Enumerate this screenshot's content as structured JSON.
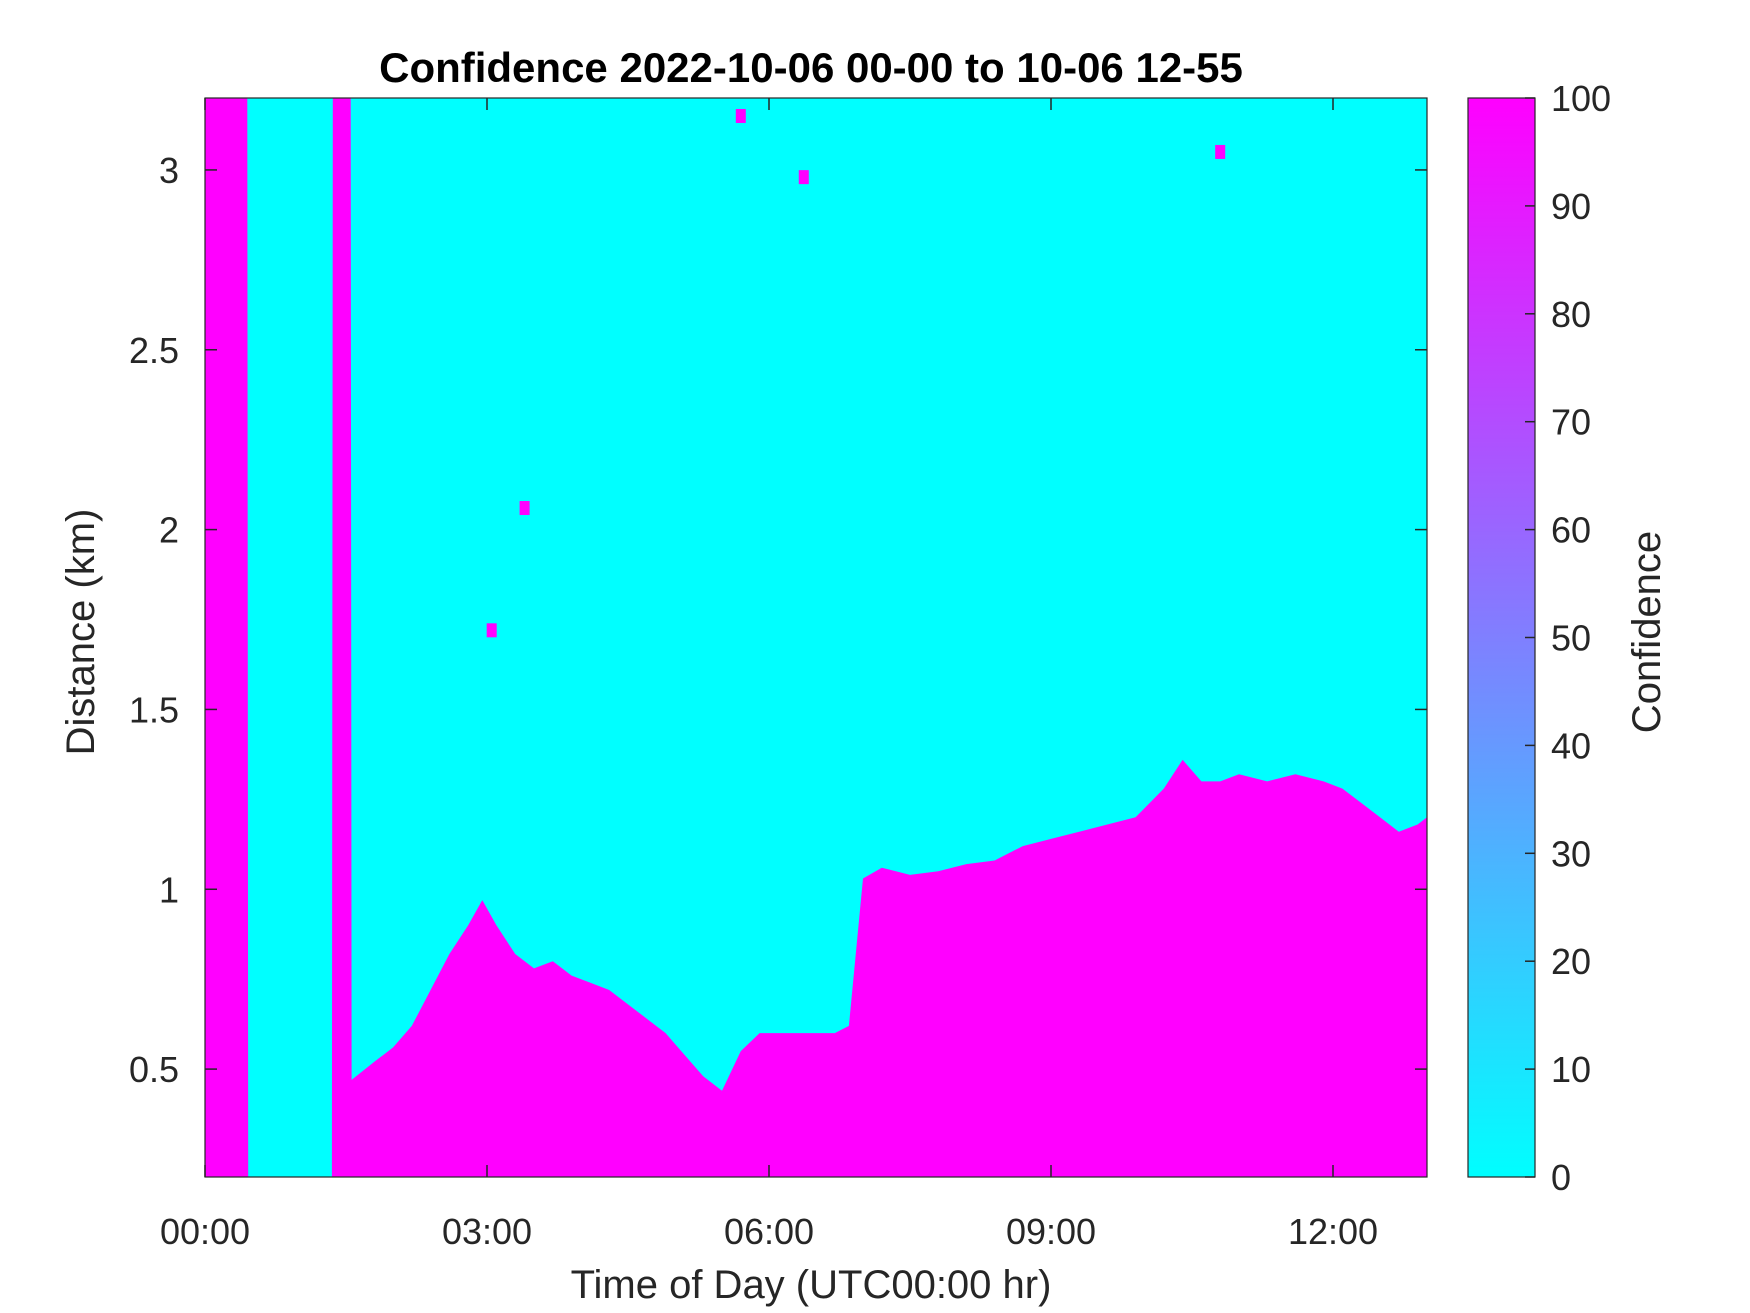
{
  "chart_data": {
    "type": "heatmap",
    "title": "Confidence 2022-10-06 00-00 to 10-06 12-55",
    "xlabel": "Time of Day (UTC00:00 hr)",
    "ylabel": "Distance (km)",
    "x_unit": "hours",
    "xlim": [
      0,
      13.0
    ],
    "ylim": [
      0.2,
      3.2
    ],
    "x_ticks": [
      0,
      3,
      6,
      9,
      12
    ],
    "x_tick_labels": [
      "00:00",
      "03:00",
      "06:00",
      "09:00",
      "12:00"
    ],
    "y_ticks": [
      0.5,
      1,
      1.5,
      2,
      2.5,
      3
    ],
    "y_tick_labels": [
      "0.5",
      "1",
      "1.5",
      "2",
      "2.5",
      "3"
    ],
    "colorbar": {
      "label": "Confidence",
      "range": [
        0,
        100
      ],
      "ticks": [
        0,
        10,
        20,
        30,
        40,
        50,
        60,
        70,
        80,
        90,
        100
      ],
      "tick_labels": [
        "0",
        "10",
        "20",
        "30",
        "40",
        "50",
        "60",
        "70",
        "80",
        "90",
        "100"
      ],
      "colormap": [
        "#00ffff",
        "#ff00ff"
      ]
    },
    "high_confidence_boundary": {
      "description": "Upper edge (km) of the contiguous high-confidence (100) region starting at the lowest range gate; above it confidence is 0",
      "time_h": [
        0.0,
        0.45,
        0.46,
        1.35,
        1.36,
        1.55,
        1.56,
        1.8,
        2.0,
        2.2,
        2.4,
        2.6,
        2.8,
        2.95,
        3.1,
        3.3,
        3.5,
        3.7,
        3.9,
        4.1,
        4.3,
        4.5,
        4.7,
        4.9,
        5.1,
        5.3,
        5.5,
        5.7,
        5.9,
        6.1,
        6.3,
        6.5,
        6.7,
        6.85,
        7.0,
        7.2,
        7.5,
        7.8,
        8.1,
        8.4,
        8.7,
        9.0,
        9.3,
        9.6,
        9.9,
        10.2,
        10.4,
        10.6,
        10.8,
        11.0,
        11.3,
        11.6,
        11.9,
        12.1,
        12.3,
        12.5,
        12.7,
        12.9,
        13.0
      ],
      "distance_km": [
        3.2,
        3.2,
        0.2,
        0.2,
        3.2,
        3.2,
        0.47,
        0.52,
        0.56,
        0.62,
        0.72,
        0.82,
        0.9,
        0.97,
        0.9,
        0.82,
        0.78,
        0.8,
        0.76,
        0.74,
        0.72,
        0.68,
        0.64,
        0.6,
        0.54,
        0.48,
        0.44,
        0.55,
        0.6,
        0.6,
        0.6,
        0.6,
        0.6,
        0.62,
        1.03,
        1.06,
        1.04,
        1.05,
        1.07,
        1.08,
        1.12,
        1.14,
        1.16,
        1.18,
        1.2,
        1.28,
        1.36,
        1.3,
        1.3,
        1.32,
        1.3,
        1.32,
        1.3,
        1.28,
        1.24,
        1.2,
        1.16,
        1.18,
        1.2
      ]
    },
    "annotations": [
      {
        "time_h": 3.4,
        "distance_km": 2.06,
        "value": 100
      },
      {
        "time_h": 3.05,
        "distance_km": 1.72,
        "value": 100
      },
      {
        "time_h": 5.7,
        "distance_km": 3.15,
        "value": 100
      },
      {
        "time_h": 6.37,
        "distance_km": 2.98,
        "value": 100
      },
      {
        "time_h": 10.8,
        "distance_km": 3.05,
        "value": 100
      }
    ]
  }
}
